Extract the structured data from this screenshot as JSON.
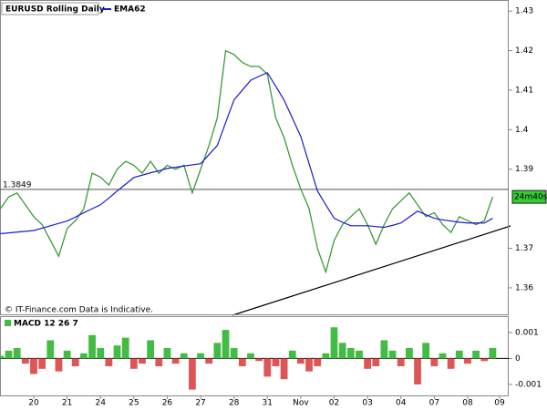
{
  "chart_data": [
    {
      "type": "line",
      "title": "EURUSD Rolling Daily",
      "x": [
        -1,
        -0.75,
        -0.5,
        -0.25,
        0,
        0.25,
        0.5,
        0.75,
        1,
        1.25,
        1.5,
        1.75,
        2,
        2.25,
        2.5,
        2.75,
        3,
        3.25,
        3.5,
        3.75,
        4,
        4.25,
        4.5,
        4.75,
        5,
        5.25,
        5.5,
        5.75,
        6,
        6.25,
        6.5,
        6.75,
        7,
        7.25,
        7.5,
        7.75,
        8,
        8.25,
        8.5,
        8.75,
        9,
        9.25,
        9.5,
        9.75,
        10,
        10.25,
        10.5,
        10.75,
        11,
        11.25,
        11.5,
        11.75,
        12,
        12.25,
        12.5,
        12.75,
        13,
        13.25,
        13.5,
        13.75
      ],
      "series": [
        {
          "color": "#3a9a3a",
          "values": [
            1.38,
            1.383,
            1.384,
            1.381,
            1.378,
            1.376,
            1.372,
            1.368,
            1.375,
            1.377,
            1.38,
            1.389,
            1.388,
            1.386,
            1.39,
            1.392,
            1.391,
            1.389,
            1.392,
            1.389,
            1.391,
            1.39,
            1.391,
            1.384,
            1.39,
            1.396,
            1.403,
            1.42,
            1.419,
            1.417,
            1.416,
            1.416,
            1.414,
            1.403,
            1.398,
            1.391,
            1.385,
            1.38,
            1.37,
            1.364,
            1.372,
            1.376,
            1.378,
            1.38,
            1.376,
            1.371,
            1.376,
            1.38,
            1.382,
            1.384,
            1.381,
            1.378,
            1.379,
            1.376,
            1.374,
            1.378,
            1.377,
            1.376,
            1.377,
            1.383
          ]
        },
        {
          "name": "EMA62",
          "color": "#1a1acc",
          "values": [
            1.3737,
            1.3739,
            1.3741,
            1.3743,
            1.3745,
            1.3751,
            1.3757,
            1.3763,
            1.3769,
            1.3779,
            1.379,
            1.38,
            1.381,
            1.3827,
            1.3845,
            1.3862,
            1.3879,
            1.3885,
            1.3891,
            1.3896,
            1.3902,
            1.3905,
            1.3908,
            1.3911,
            1.3914,
            1.3937,
            1.396,
            1.4018,
            1.4075,
            1.41,
            1.4125,
            1.4135,
            1.4144,
            1.411,
            1.4075,
            1.4029,
            1.3983,
            1.3914,
            1.3845,
            1.381,
            1.3776,
            1.3766,
            1.3757,
            1.3757,
            1.3757,
            1.3755,
            1.3753,
            1.3758,
            1.3764,
            1.3779,
            1.3794,
            1.3785,
            1.3776,
            1.3772,
            1.3769,
            1.3766,
            1.3764,
            1.3764,
            1.3764,
            1.3776
          ]
        }
      ],
      "xlim": [
        -1.01,
        14.23
      ],
      "ylim": [
        1.3533,
        1.4328
      ],
      "yticks": [
        1.43,
        1.42,
        1.41,
        1.4,
        1.39,
        1.37,
        1.36
      ],
      "reference_line": 1.3849,
      "countdown_label": "24m40s",
      "countdown_color": "#33cc33",
      "footer": "© IT-Finance.com Data is Indicative."
    },
    {
      "type": "bar",
      "title": "MACD 12 26 7",
      "x": [
        -1,
        -0.75,
        -0.5,
        -0.25,
        0,
        0.25,
        0.5,
        0.75,
        1,
        1.25,
        1.5,
        1.75,
        2,
        2.25,
        2.5,
        2.75,
        3,
        3.25,
        3.5,
        3.75,
        4,
        4.25,
        4.5,
        4.75,
        5,
        5.25,
        5.5,
        5.75,
        6,
        6.25,
        6.5,
        6.75,
        7,
        7.25,
        7.5,
        7.75,
        8,
        8.25,
        8.5,
        8.75,
        9,
        9.25,
        9.5,
        9.75,
        10,
        10.25,
        10.5,
        10.75,
        11,
        11.25,
        11.5,
        11.75,
        12,
        12.25,
        12.5,
        12.75,
        13,
        13.25,
        13.5,
        13.75
      ],
      "values": [
        0.0001,
        0.0003,
        0.0004,
        -0.0002,
        -0.0006,
        -0.0004,
        0.0007,
        -0.0005,
        0.0003,
        -0.0003,
        0.0002,
        0.0009,
        0.0004,
        -0.0003,
        0.0005,
        0.0008,
        -0.0004,
        -0.0002,
        0.0007,
        -0.0003,
        0.0004,
        -0.0002,
        0.0002,
        -0.0012,
        0.0002,
        -0.0002,
        0.0006,
        0.0011,
        0.0004,
        -0.0003,
        0.0002,
        -0.0001,
        -0.0007,
        -0.0003,
        -0.0008,
        0.0003,
        -0.0002,
        -0.0005,
        -0.0003,
        0.0002,
        0.0012,
        0.0006,
        0.0004,
        0.0003,
        -0.0004,
        -0.0003,
        0.0007,
        0.0003,
        -0.0003,
        0.0004,
        -0.001,
        0.0006,
        -0.0003,
        0.0002,
        -0.0004,
        0.0003,
        -0.0002,
        0.0003,
        -0.0001,
        0.0004
      ],
      "positive_color": "#44bb44",
      "negative_color": "#dd5555",
      "xlim": [
        -1.01,
        14.23
      ],
      "ylim": [
        -0.00146,
        0.00163
      ],
      "yticks": [
        0.001,
        0,
        -0.001
      ],
      "xticks": [
        {
          "value": 0,
          "label": "20"
        },
        {
          "value": 1,
          "label": "21"
        },
        {
          "value": 2,
          "label": "24"
        },
        {
          "value": 3,
          "label": "25"
        },
        {
          "value": 4,
          "label": "26"
        },
        {
          "value": 5,
          "label": "27"
        },
        {
          "value": 6,
          "label": "28"
        },
        {
          "value": 7,
          "label": "31"
        },
        {
          "value": 8,
          "label": "Nov"
        },
        {
          "value": 9,
          "label": "02"
        },
        {
          "value": 10,
          "label": "03"
        },
        {
          "value": 11,
          "label": "04"
        },
        {
          "value": 12,
          "label": "07"
        },
        {
          "value": 13,
          "label": "08"
        },
        {
          "value": 14,
          "label": "09"
        }
      ]
    }
  ]
}
